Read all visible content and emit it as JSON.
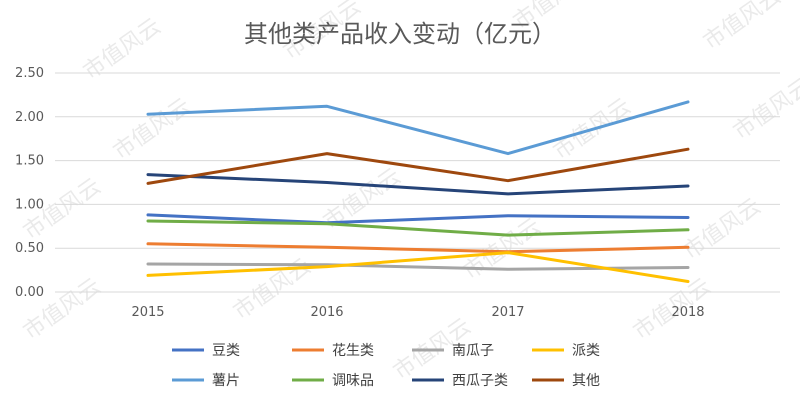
{
  "chart_data": {
    "type": "line",
    "title": "其他类产品收入变动（亿元）",
    "xlabel": "",
    "ylabel": "",
    "categories": [
      "2015",
      "2016",
      "2017",
      "2018"
    ],
    "y_ticks": [
      "0.00",
      "0.50",
      "1.00",
      "1.50",
      "2.00",
      "2.50"
    ],
    "ylim": [
      0,
      2.5
    ],
    "grid": true,
    "legend_position": "bottom",
    "series": [
      {
        "name": "豆类",
        "color": "#4472c4",
        "values": [
          0.88,
          0.79,
          0.87,
          0.85
        ]
      },
      {
        "name": "花生类",
        "color": "#ed7d31",
        "values": [
          0.55,
          0.51,
          0.46,
          0.51
        ]
      },
      {
        "name": "南瓜子",
        "color": "#a5a5a5",
        "values": [
          0.32,
          0.31,
          0.26,
          0.28
        ]
      },
      {
        "name": "派类",
        "color": "#ffc000",
        "values": [
          0.19,
          0.29,
          0.45,
          0.12
        ]
      },
      {
        "name": "薯片",
        "color": "#5b9bd5",
        "values": [
          2.03,
          2.12,
          1.58,
          2.17
        ]
      },
      {
        "name": "调味品",
        "color": "#70ad47",
        "values": [
          0.81,
          0.78,
          0.65,
          0.71
        ]
      },
      {
        "name": "西瓜子类",
        "color": "#264478",
        "values": [
          1.34,
          1.25,
          1.12,
          1.21
        ]
      },
      {
        "name": "其他",
        "color": "#9e480e",
        "values": [
          1.24,
          1.58,
          1.27,
          1.63
        ]
      }
    ]
  },
  "watermark": "市值风云"
}
